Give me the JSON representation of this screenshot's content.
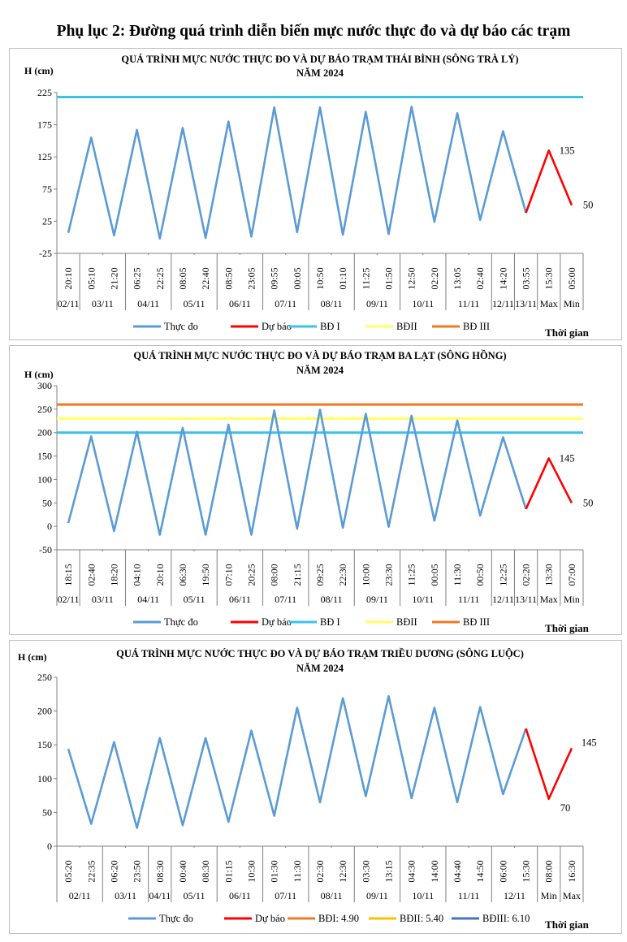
{
  "page_title": "Phụ lục 2: Đường quá trình diễn biến mực nước thực đo và dự báo các trạm",
  "chart_data": [
    {
      "type": "line",
      "title_line1": "QUÁ TRÌNH MỰC NƯỚC THỰC ĐO VÀ DỰ BÁO TRẠM THÁI BÌNH (SÔNG TRÀ LÝ)",
      "title_line2": "NĂM 2024",
      "ylabel": "H (cm)",
      "xlabel": "Thời gian",
      "ylim": [
        -25,
        225
      ],
      "yticks": [
        -25,
        25,
        75,
        125,
        175,
        225
      ],
      "times": [
        "20:10",
        "05:10",
        "21:20",
        "06:25",
        "22:25",
        "08:05",
        "22:40",
        "08:50",
        "23:05",
        "09:55",
        "00:05",
        "10:50",
        "01:10",
        "11:25",
        "01:50",
        "12:50",
        "02:20",
        "13:05",
        "02:40",
        "14:20",
        "03:55",
        "15:30",
        "05:00"
      ],
      "dates": [
        "02/11",
        "03/11",
        "04/11",
        "05/11",
        "06/11",
        "07/11",
        "08/11",
        "09/11",
        "10/11",
        "11/11",
        "12/11",
        "13/11",
        "Max",
        "Min"
      ],
      "observed": [
        7,
        155,
        3,
        167,
        -2,
        170,
        -1,
        180,
        1,
        202,
        8,
        202,
        4,
        195,
        5,
        203,
        24,
        193,
        27,
        165,
        38
      ],
      "forecast": [
        38,
        135,
        50
      ],
      "forecast_start_index": 20,
      "forecast_labels": [
        "135",
        "50"
      ],
      "thresholds": [
        {
          "name": "BĐ I",
          "value": 218,
          "color": "#3cc0ec",
          "shown": true
        },
        {
          "name": "BĐII",
          "value": null,
          "color": "#ffff66",
          "shown": false
        },
        {
          "name": "BĐ III",
          "value": null,
          "color": "#f07823",
          "shown": false
        }
      ],
      "legend": [
        "Thực đo",
        "Dự báo",
        "BĐ I",
        "BĐII",
        "BĐ III"
      ],
      "colors": {
        "observed": "#5b9bd5",
        "forecast": "#ff0000"
      }
    },
    {
      "type": "line",
      "title_line1": "QUÁ TRÌNH MỰC NƯỚC THỰC ĐO VÀ DỰ BÁO TRẠM BA LẠT (SÔNG HỒNG)",
      "title_line2": "NĂM 2024",
      "ylabel": "H (cm)",
      "xlabel": "Thời gian",
      "ylim": [
        -50,
        300
      ],
      "yticks": [
        -50,
        0,
        50,
        100,
        150,
        200,
        250,
        300
      ],
      "times": [
        "18:15",
        "02:40",
        "18:20",
        "04:10",
        "20:10",
        "06:30",
        "19:50",
        "07:10",
        "20:25",
        "08:00",
        "21:15",
        "09:25",
        "22:30",
        "10:00",
        "23:30",
        "11:25",
        "00:05",
        "11:30",
        "00:50",
        "12:25",
        "02:20",
        "13:30",
        "07:00"
      ],
      "dates": [
        "02/11",
        "03/11",
        "04/11",
        "05/11",
        "06/11",
        "07/11",
        "08/11",
        "09/11",
        "10/11",
        "11/11",
        "12/11",
        "13/11",
        "Max",
        "Min"
      ],
      "observed": [
        7,
        192,
        -10,
        202,
        -18,
        210,
        -18,
        217,
        -18,
        247,
        -5,
        249,
        -3,
        240,
        -1,
        236,
        12,
        226,
        23,
        190,
        37
      ],
      "forecast": [
        37,
        145,
        50
      ],
      "forecast_start_index": 20,
      "forecast_labels": [
        "145",
        "50"
      ],
      "thresholds": [
        {
          "name": "BĐ I",
          "value": 200,
          "color": "#3cc0ec",
          "shown": true
        },
        {
          "name": "BĐII",
          "value": 230,
          "color": "#ffff66",
          "shown": true
        },
        {
          "name": "BĐ III",
          "value": 260,
          "color": "#f07823",
          "shown": true
        }
      ],
      "legend": [
        "Thực đo",
        "Dự báo",
        "BĐ I",
        "BĐII",
        "BĐ III"
      ],
      "colors": {
        "observed": "#5b9bd5",
        "forecast": "#ff0000"
      }
    },
    {
      "type": "line",
      "title_line1": "QUÁ TRÌNH MỰC NƯỚC THỰC ĐO VÀ DỰ BÁO TRẠM TRIỀU DƯƠNG (SÔNG LUỘC)",
      "title_line2": "NĂM 2024",
      "ylabel": "H (cm)",
      "xlabel": "Thời gian",
      "ylim": [
        0,
        250
      ],
      "yticks": [
        0,
        50,
        100,
        150,
        200,
        250
      ],
      "times": [
        "05:20",
        "22:35",
        "06:20",
        "23:50",
        "08:30",
        "00:40",
        "08:30",
        "01:15",
        "10:30",
        "01:30",
        "11:30",
        "02:30",
        "12:30",
        "03:30",
        "13:15",
        "04:30",
        "14:00",
        "04:40",
        "14:50",
        "06:00",
        "15:30",
        "08:00",
        "16:30"
      ],
      "dates": [
        "02/11",
        "03/11",
        "04/11",
        "05/11",
        "06/11",
        "07/11",
        "08/11",
        "09/11",
        "10/11",
        "11/11",
        "12/11",
        "Min",
        "Max"
      ],
      "observed": [
        144,
        33,
        154,
        27,
        160,
        31,
        160,
        36,
        171,
        45,
        205,
        65,
        219,
        74,
        222,
        71,
        205,
        65,
        206,
        77,
        174
      ],
      "forecast": [
        174,
        70,
        145
      ],
      "forecast_start_index": 20,
      "forecast_labels": [
        "70",
        "145"
      ],
      "thresholds": [
        {
          "name": "BĐI: 4.90",
          "value": null,
          "color": "#f07823",
          "shown": false
        },
        {
          "name": "BĐII: 5.40",
          "value": null,
          "color": "#ffc000",
          "shown": false
        },
        {
          "name": "BĐIII: 6.10",
          "value": null,
          "color": "#4472c4",
          "shown": false
        }
      ],
      "legend": [
        "Thực đo",
        "Dự báo",
        "BĐI: 4.90",
        "BĐII: 5.40",
        "BĐIII: 6.10"
      ],
      "colors": {
        "observed": "#5b9bd5",
        "forecast": "#ff0000"
      }
    }
  ]
}
